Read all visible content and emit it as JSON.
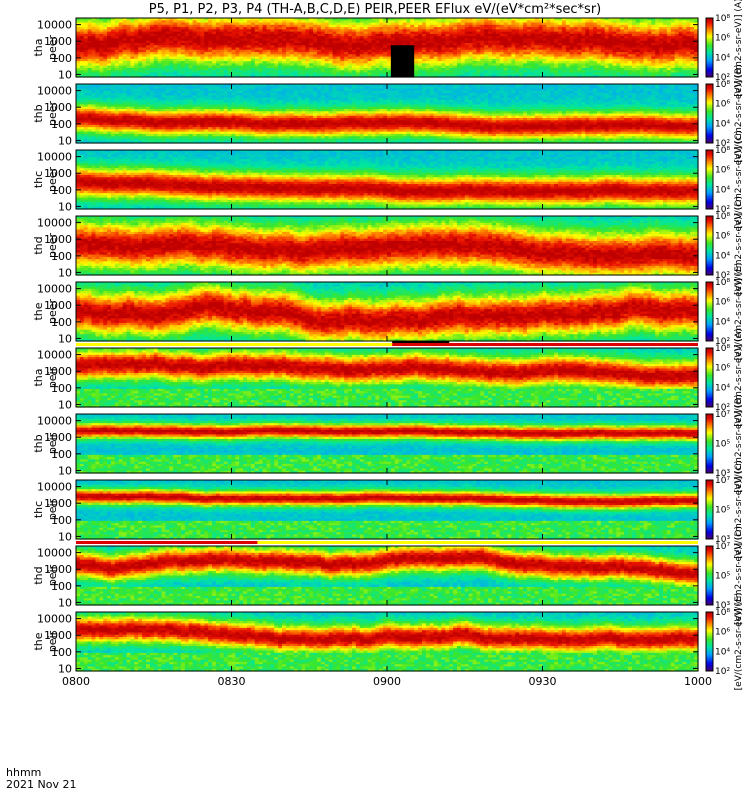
{
  "title": "P5, P1, P2, P3, P4 (TH-A,B,C,D,E) PEIR,PEER EFlux eV/(eV*cm²*sec*sr)",
  "footer": {
    "time_label": "hhmm",
    "date_label": "2021 Nov 21"
  },
  "colors": {
    "black": "#000000",
    "red": "#dd0000",
    "yellow": "#ffff00"
  },
  "chart_data": {
    "type": "heatmap",
    "description_units": "energy-time spectrograms",
    "x_axis": {
      "ticks": [
        "0800",
        "0830",
        "0900",
        "0930",
        "1000"
      ],
      "range_minutes": [
        0,
        120
      ]
    },
    "y_axis": {
      "scale": "log",
      "range_eV": [
        7,
        25000
      ],
      "ticks": [
        "10",
        "100",
        "1000",
        "10000"
      ],
      "tick_values": [
        10,
        100,
        1000,
        10000
      ]
    },
    "panels": [
      {
        "probe": "tha",
        "species": "peer",
        "cb_min_exp": 2,
        "cb_max_exp": 8,
        "cb_label": "[eV/(cm2-s-sr-eV)] (A)",
        "core_logE": 2.7,
        "core_width": 1.5,
        "variability": 0.8,
        "gap": [
          61,
          65
        ]
      },
      {
        "probe": "thb",
        "species": "peer",
        "cb_min_exp": 2,
        "cb_max_exp": 8,
        "cb_label": "[eV/(cm2-s-sr-eV)] (B)",
        "core_logE": 2.3,
        "core_width": 0.8,
        "variability": 0.3
      },
      {
        "probe": "thc",
        "species": "peer",
        "cb_min_exp": 2,
        "cb_max_exp": 8,
        "cb_label": "[eV/(cm2-s-sr-eV)] (C)",
        "core_logE": 2.5,
        "core_width": 0.9,
        "variability": 0.3
      },
      {
        "probe": "thd",
        "species": "peer",
        "cb_min_exp": 2,
        "cb_max_exp": 8,
        "cb_label": "[eV/(cm2-s-sr-eV)] (D)",
        "core_logE": 2.6,
        "core_width": 1.4,
        "variability": 0.7
      },
      {
        "probe": "the",
        "species": "peer",
        "cb_min_exp": 2,
        "cb_max_exp": 8,
        "cb_label": "[eV/(cm2-s-sr-eV)] (E)",
        "core_logE": 2.6,
        "core_width": 1.3,
        "variability": 0.8
      },
      {
        "probe": "tha",
        "species": "peir",
        "cb_min_exp": 2,
        "cb_max_exp": 8,
        "cb_label": "[eV/(cm2-s-sr-eV)] (A)",
        "core_logE": 3.3,
        "core_width": 0.9,
        "variability": 0.6,
        "bar": {
          "color": "red",
          "from": 61,
          "to": 120
        },
        "bar_black": [
          61,
          72
        ]
      },
      {
        "probe": "thb",
        "species": "peir",
        "cb_min_exp": 3,
        "cb_max_exp": 7,
        "cb_label": "[eV/(cm2-s-sr-eV)] (B)",
        "core_logE": 3.4,
        "core_width": 0.45,
        "variability": 0.2
      },
      {
        "probe": "thc",
        "species": "peir",
        "cb_min_exp": 3,
        "cb_max_exp": 7,
        "cb_label": "[eV/(cm2-s-sr-eV)] (C)",
        "core_logE": 3.4,
        "core_width": 0.45,
        "variability": 0.2
      },
      {
        "probe": "thd",
        "species": "peir",
        "cb_min_exp": 3,
        "cb_max_exp": 7,
        "cb_label": "[eV/(cm2-s-sr-eV)] (D)",
        "core_logE": 3.3,
        "core_width": 0.8,
        "variability": 0.6,
        "bar": {
          "color": "red",
          "from": 0,
          "to": 35
        }
      },
      {
        "probe": "the",
        "species": "peir",
        "cb_min_exp": 2,
        "cb_max_exp": 8,
        "cb_label": "[eV/(cm2-s-sr-eV)] (E)",
        "core_logE": 3.3,
        "core_width": 0.8,
        "variability": 0.6
      }
    ]
  }
}
